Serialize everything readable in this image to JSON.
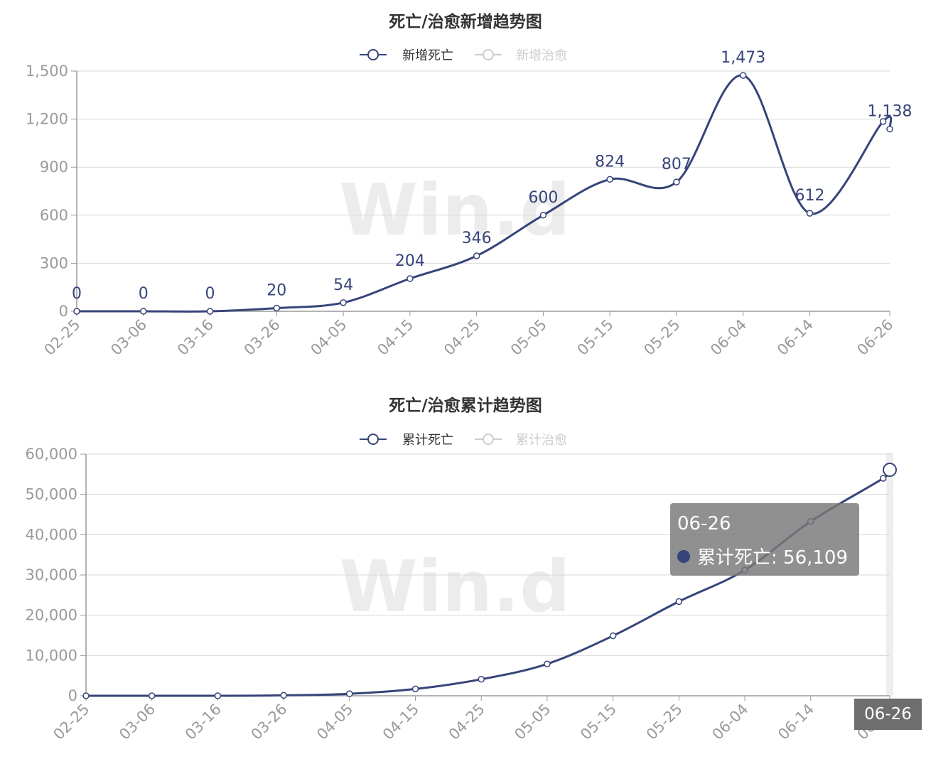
{
  "colors": {
    "series": "#37447a",
    "inactive": "#cccccc",
    "grid": "#d9d9d9",
    "tick": "#9a9a9a"
  },
  "watermark": "Win.d",
  "chart_data": [
    {
      "type": "line",
      "title": "死亡/治愈新增趋势图",
      "legend_position": "top-center",
      "series": [
        {
          "name": "新增死亡",
          "active": true
        },
        {
          "name": "新增治愈",
          "active": false
        }
      ],
      "x_ticks": [
        "02-25",
        "03-06",
        "03-16",
        "03-26",
        "04-05",
        "04-15",
        "04-25",
        "05-05",
        "05-15",
        "05-25",
        "06-04",
        "06-14",
        "06-26"
      ],
      "ylim": [
        0,
        1500
      ],
      "y_ticks": [
        "0",
        "300",
        "600",
        "900",
        "1,200",
        "1,500"
      ],
      "points": [
        {
          "x": "02-25",
          "y": 0
        },
        {
          "x": "03-06",
          "y": 0
        },
        {
          "x": "03-16",
          "y": 0
        },
        {
          "x": "03-26",
          "y": 20
        },
        {
          "x": "04-05",
          "y": 54
        },
        {
          "x": "04-15",
          "y": 204
        },
        {
          "x": "04-25",
          "y": 346
        },
        {
          "x": "05-05",
          "y": 600
        },
        {
          "x": "05-15",
          "y": 824
        },
        {
          "x": "05-25",
          "y": 807
        },
        {
          "x": "06-04",
          "y": 1473
        },
        {
          "x": "06-14",
          "y": 612
        },
        {
          "x": "06-25",
          "y": 1185
        },
        {
          "x": "06-26",
          "y": 1138
        }
      ],
      "data_labels": [
        "0",
        "0",
        "0",
        "20",
        "54",
        "204",
        "346",
        "600",
        "824",
        "807",
        "1,473",
        "612",
        "1,138"
      ]
    },
    {
      "type": "line",
      "title": "死亡/治愈累计趋势图",
      "legend_position": "top-center",
      "series": [
        {
          "name": "累计死亡",
          "active": true
        },
        {
          "name": "累计治愈",
          "active": false
        }
      ],
      "x_ticks": [
        "02-25",
        "03-06",
        "03-16",
        "03-26",
        "04-05",
        "04-15",
        "04-25",
        "05-05",
        "05-15",
        "05-25",
        "06-04",
        "06-14",
        "06-26"
      ],
      "ylim": [
        0,
        60000
      ],
      "y_ticks": [
        "0",
        "10,000",
        "20,000",
        "30,000",
        "40,000",
        "50,000",
        "60,000"
      ],
      "points": [
        {
          "x": "02-25",
          "y": 0
        },
        {
          "x": "03-06",
          "y": 0
        },
        {
          "x": "03-16",
          "y": 0
        },
        {
          "x": "03-26",
          "y": 100
        },
        {
          "x": "04-05",
          "y": 500
        },
        {
          "x": "04-15",
          "y": 1700
        },
        {
          "x": "04-25",
          "y": 4100
        },
        {
          "x": "05-05",
          "y": 7900
        },
        {
          "x": "05-15",
          "y": 14900
        },
        {
          "x": "05-25",
          "y": 23400
        },
        {
          "x": "06-04",
          "y": 31200
        },
        {
          "x": "06-14",
          "y": 43300
        },
        {
          "x": "06-25",
          "y": 54000
        },
        {
          "x": "06-26",
          "y": 56109
        }
      ]
    }
  ],
  "tooltip": {
    "date": "06-26",
    "series": "累计死亡",
    "value": "56,109",
    "text": "累计死亡: 56,109"
  },
  "axis_pointer_label": "06-26"
}
